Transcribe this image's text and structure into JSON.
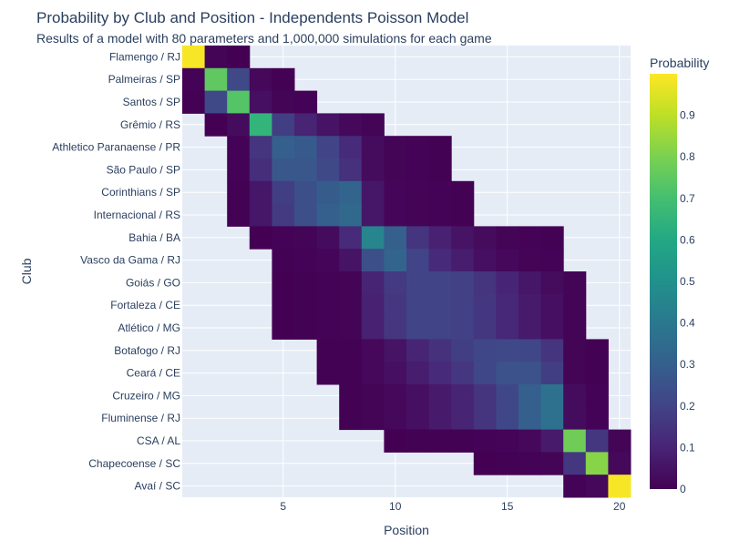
{
  "chart_data": {
    "type": "heatmap",
    "title": "Probability by Club and Position - Independents Poisson Model",
    "subtitle": "Results of a model with 80 parameters and 1,000,000 simulations for each game",
    "xlabel": "Position",
    "ylabel": "Club",
    "x": [
      1,
      2,
      3,
      4,
      5,
      6,
      7,
      8,
      9,
      10,
      11,
      12,
      13,
      14,
      15,
      16,
      17,
      18,
      19,
      20
    ],
    "x_ticks": [
      5,
      10,
      15,
      20
    ],
    "y": [
      "Flamengo / RJ",
      "Palmeiras / SP",
      "Santos / SP",
      "Grêmio / RS",
      "Athletico Paranaense / PR",
      "São Paulo / SP",
      "Corinthians / SP",
      "Internacional / RS",
      "Bahia / BA",
      "Vasco da Gama / RJ",
      "Goiás / GO",
      "Fortaleza / CE",
      "Atlético / MG",
      "Botafogo / RJ",
      "Ceará / CE",
      "Cruzeiro / MG",
      "Fluminense / RJ",
      "CSA / AL",
      "Chapecoense / SC",
      "Avaí / SC"
    ],
    "colorbar": {
      "title": "Probability",
      "range": [
        0,
        1
      ],
      "ticks": [
        0,
        0.1,
        0.2,
        0.3,
        0.4,
        0.5,
        0.6,
        0.7,
        0.8,
        0.9
      ],
      "colorscale": "Viridis"
    },
    "z": [
      [
        0.99,
        0.01,
        0.001,
        null,
        null,
        null,
        null,
        null,
        null,
        null,
        null,
        null,
        null,
        null,
        null,
        null,
        null,
        null,
        null,
        null
      ],
      [
        0.005,
        0.75,
        0.22,
        0.02,
        0.003,
        null,
        null,
        null,
        null,
        null,
        null,
        null,
        null,
        null,
        null,
        null,
        null,
        null,
        null,
        null
      ],
      [
        0.003,
        0.22,
        0.73,
        0.04,
        0.01,
        0.005,
        null,
        null,
        null,
        null,
        null,
        null,
        null,
        null,
        null,
        null,
        null,
        null,
        null,
        null
      ],
      [
        null,
        0.001,
        0.03,
        0.65,
        0.18,
        0.1,
        0.05,
        0.02,
        0.01,
        null,
        null,
        null,
        null,
        null,
        null,
        null,
        null,
        null,
        null,
        null
      ],
      [
        null,
        null,
        0.005,
        0.15,
        0.3,
        0.28,
        0.2,
        0.12,
        0.03,
        0.01,
        0.005,
        0.003,
        null,
        null,
        null,
        null,
        null,
        null,
        null,
        null
      ],
      [
        null,
        null,
        0.005,
        0.13,
        0.27,
        0.27,
        0.22,
        0.14,
        0.03,
        0.01,
        0.005,
        0.003,
        null,
        null,
        null,
        null,
        null,
        null,
        null,
        null
      ],
      [
        null,
        null,
        0.003,
        0.06,
        0.18,
        0.24,
        0.29,
        0.32,
        0.06,
        0.015,
        0.01,
        0.005,
        0.003,
        null,
        null,
        null,
        null,
        null,
        null,
        null
      ],
      [
        null,
        null,
        0.003,
        0.06,
        0.17,
        0.24,
        0.3,
        0.34,
        0.06,
        0.015,
        0.01,
        0.005,
        0.003,
        null,
        null,
        null,
        null,
        null,
        null,
        null
      ],
      [
        null,
        null,
        null,
        0.001,
        0.005,
        0.01,
        0.03,
        0.12,
        0.45,
        0.3,
        0.15,
        0.09,
        0.05,
        0.03,
        0.01,
        0.005,
        0.003,
        null,
        null,
        null
      ],
      [
        null,
        null,
        null,
        null,
        0.003,
        0.005,
        0.015,
        0.05,
        0.24,
        0.32,
        0.2,
        0.12,
        0.08,
        0.04,
        0.02,
        0.01,
        0.005,
        null,
        null,
        null
      ],
      [
        null,
        null,
        null,
        null,
        0.001,
        0.003,
        0.005,
        0.01,
        0.1,
        0.17,
        0.2,
        0.2,
        0.19,
        0.15,
        0.1,
        0.06,
        0.03,
        0.01,
        null,
        null
      ],
      [
        null,
        null,
        null,
        null,
        0.001,
        0.003,
        0.005,
        0.01,
        0.09,
        0.16,
        0.2,
        0.2,
        0.19,
        0.16,
        0.11,
        0.07,
        0.04,
        0.01,
        null,
        null
      ],
      [
        null,
        null,
        null,
        null,
        0.001,
        0.003,
        0.005,
        0.01,
        0.09,
        0.16,
        0.2,
        0.2,
        0.19,
        0.16,
        0.11,
        0.07,
        0.04,
        0.01,
        null,
        null
      ],
      [
        null,
        null,
        null,
        null,
        null,
        null,
        0.002,
        0.004,
        0.02,
        0.05,
        0.1,
        0.14,
        0.18,
        0.21,
        0.22,
        0.21,
        0.15,
        0.01,
        0.003,
        null
      ],
      [
        null,
        null,
        null,
        null,
        null,
        null,
        0.002,
        0.004,
        0.02,
        0.04,
        0.08,
        0.12,
        0.16,
        0.21,
        0.25,
        0.25,
        0.18,
        0.01,
        0.003,
        null
      ],
      [
        null,
        null,
        null,
        null,
        null,
        null,
        null,
        0.002,
        0.01,
        0.02,
        0.04,
        0.07,
        0.1,
        0.15,
        0.21,
        0.3,
        0.37,
        0.03,
        0.005,
        null
      ],
      [
        null,
        null,
        null,
        null,
        null,
        null,
        null,
        0.002,
        0.01,
        0.02,
        0.04,
        0.07,
        0.1,
        0.15,
        0.21,
        0.3,
        0.37,
        0.03,
        0.005,
        null
      ],
      [
        null,
        null,
        null,
        null,
        null,
        null,
        null,
        null,
        null,
        0.001,
        0.002,
        0.003,
        0.004,
        0.005,
        0.008,
        0.02,
        0.07,
        0.78,
        0.16,
        0.01
      ],
      [
        null,
        null,
        null,
        null,
        null,
        null,
        null,
        null,
        null,
        null,
        null,
        null,
        null,
        0.001,
        0.003,
        0.005,
        0.01,
        0.16,
        0.82,
        0.02
      ],
      [
        null,
        null,
        null,
        null,
        null,
        null,
        null,
        null,
        null,
        null,
        null,
        null,
        null,
        null,
        null,
        null,
        null,
        0.005,
        0.02,
        0.99
      ]
    ]
  }
}
